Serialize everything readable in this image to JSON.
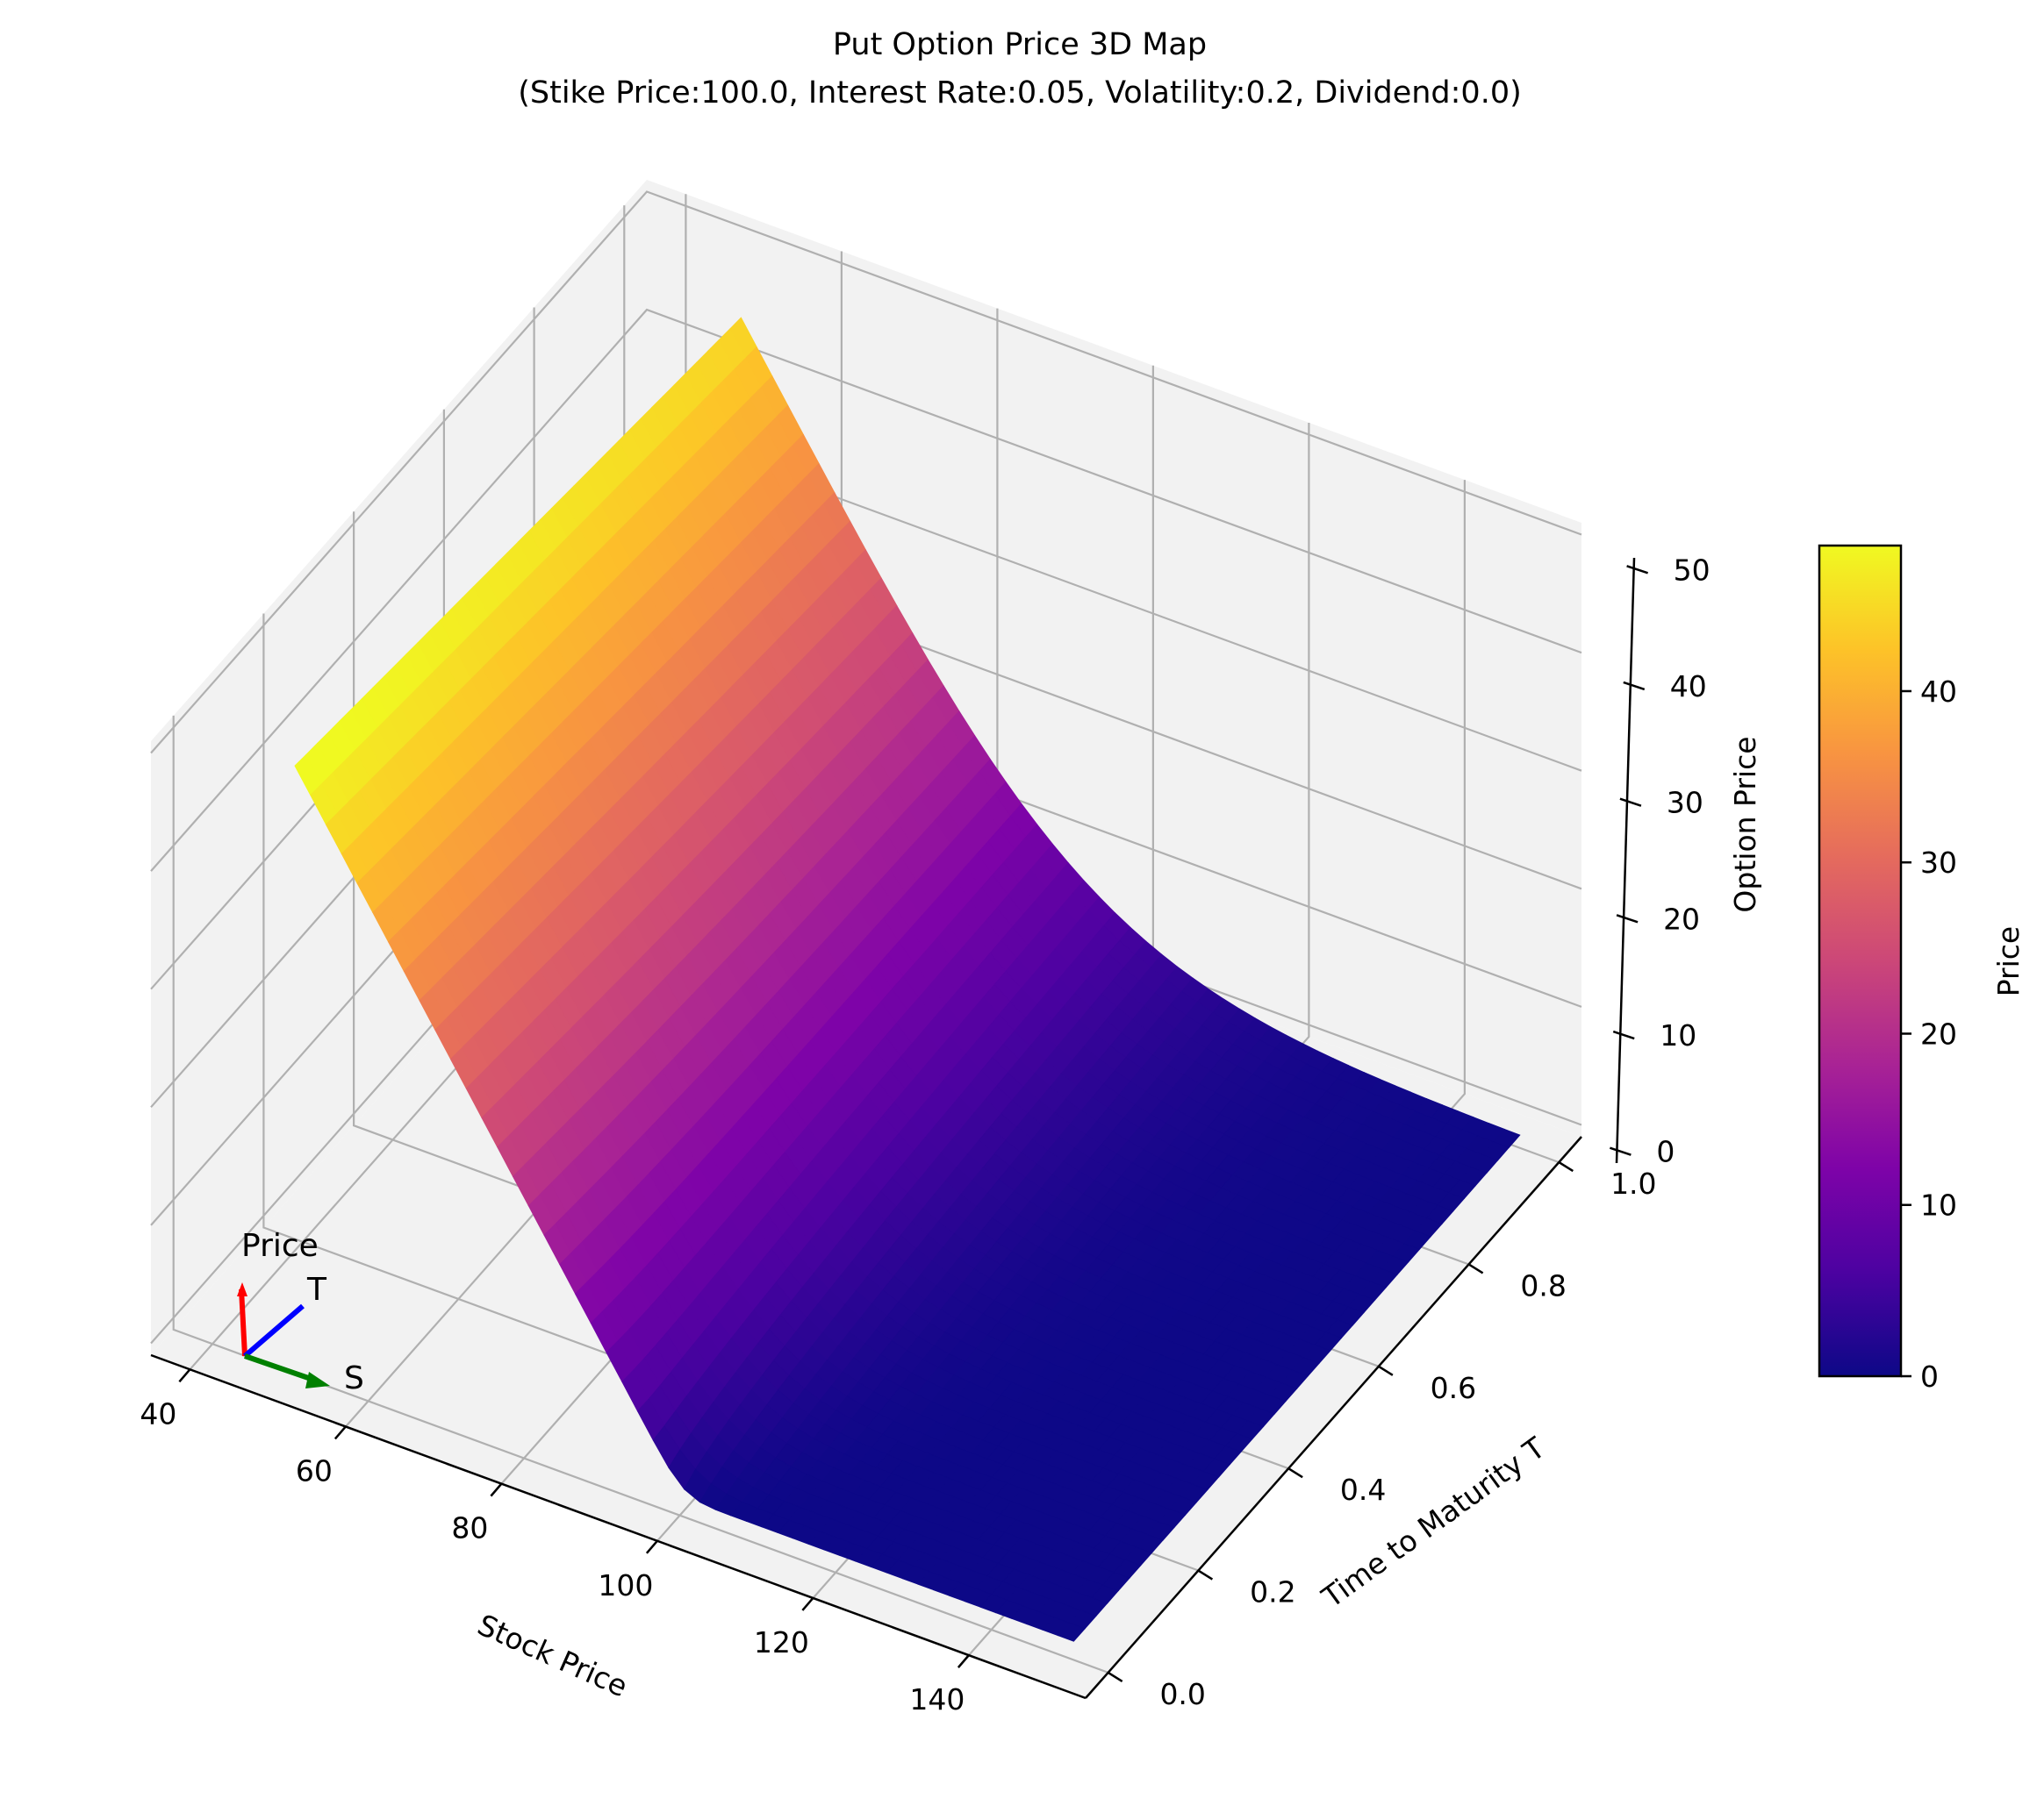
{
  "chart_data": {
    "type": "surface3d",
    "title": "Put Option Price 3D Map",
    "subtitle": "(Stike Price:100.0, Interest Rate:0.05, Volatility:0.2, Dividend:0.0)",
    "xlabel": "Stock Price",
    "ylabel": "Time to Maturity T",
    "zlabel": "Option Price",
    "xlim": [
      35,
      155
    ],
    "ylim": [
      -0.05,
      1.05
    ],
    "zlim": [
      -1,
      51
    ],
    "x_ticks": [
      40,
      60,
      80,
      100,
      120,
      140
    ],
    "y_ticks": [
      0.0,
      0.2,
      0.4,
      0.6,
      0.8,
      1.0
    ],
    "z_ticks": [
      0,
      10,
      20,
      30,
      40,
      50
    ],
    "x_tick_labels": [
      "40",
      "60",
      "80",
      "100",
      "120",
      "140"
    ],
    "y_tick_labels": [
      "0.0",
      "0.2",
      "0.4",
      "0.6",
      "0.8",
      "1.0"
    ],
    "z_tick_labels": [
      "0",
      "10",
      "20",
      "30",
      "40",
      "50"
    ],
    "surface": {
      "stock_price_range": [
        50,
        150
      ],
      "time_range": [
        0.01,
        1.0
      ],
      "strike": 100.0,
      "rate": 0.05,
      "volatility": 0.2,
      "dividend": 0.0
    },
    "colormap": "plasma",
    "colorbar": {
      "label": "Price",
      "range": [
        0,
        48.5
      ],
      "ticks": [
        0,
        10,
        20,
        30,
        40
      ],
      "tick_labels": [
        "0",
        "10",
        "20",
        "30",
        "40"
      ]
    },
    "grid": true,
    "axis_indicator": {
      "price_label": "Price",
      "time_label": "T",
      "stock_label": "S",
      "price_color": "#ff0000",
      "time_color": "#0000ff",
      "stock_color": "#008000"
    },
    "pane_color": "#f2f2f2",
    "grid_color": "#b0b0b0"
  }
}
